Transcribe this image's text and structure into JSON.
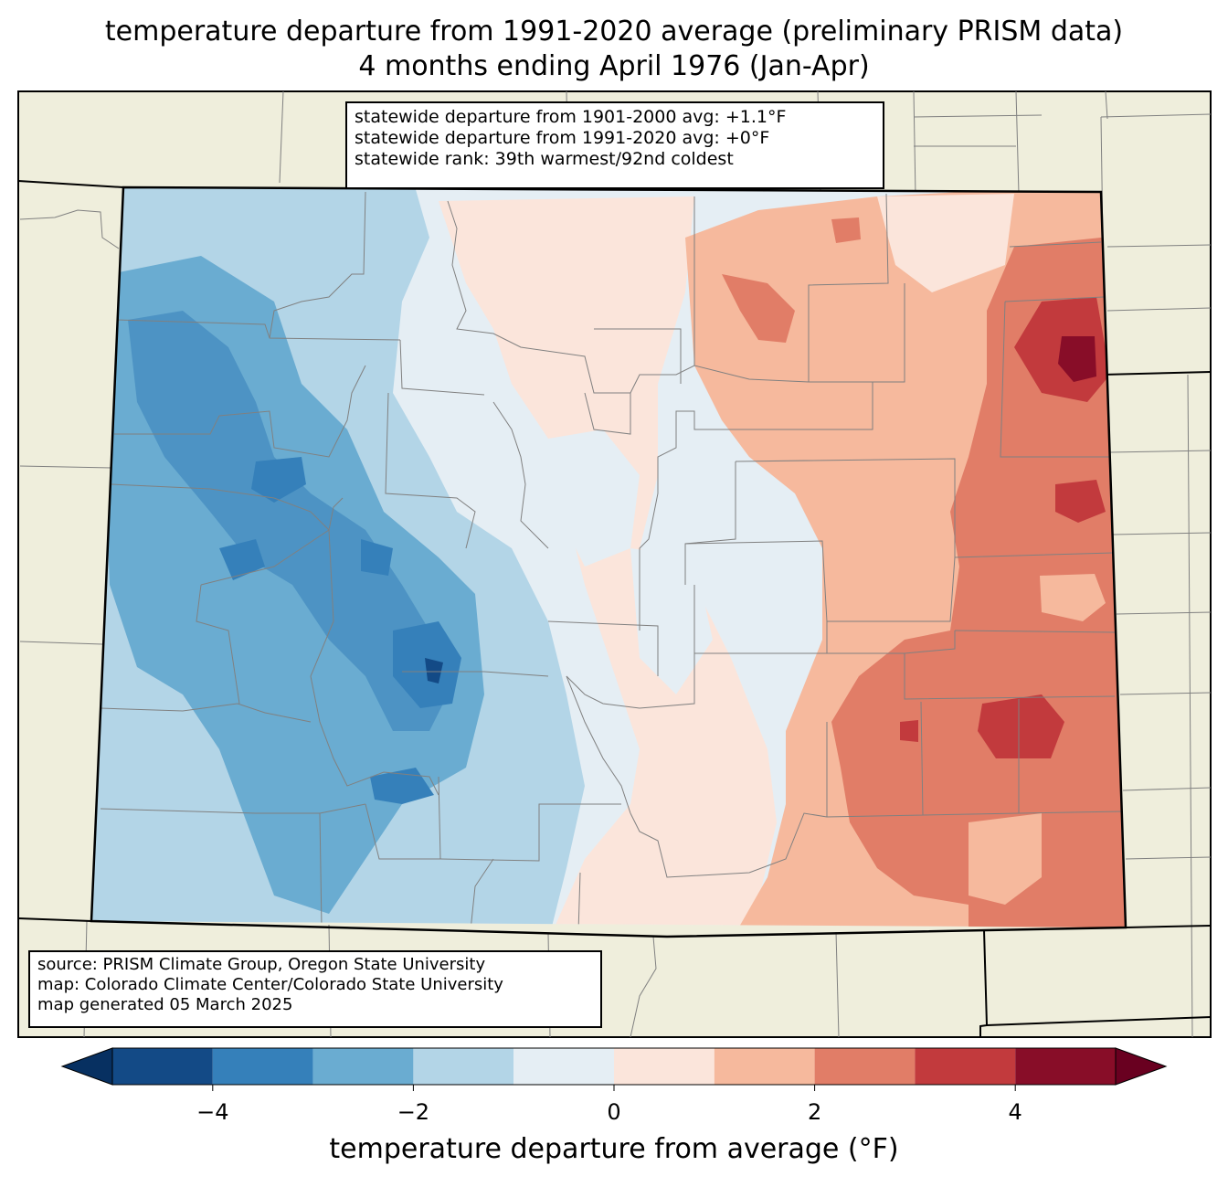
{
  "title": {
    "line1": "temperature departure from 1991-2020 average (preliminary PRISM data)",
    "line2": "4 months ending April 1976 (Jan-Apr)"
  },
  "stats": {
    "line1": "statewide departure from 1901-2000 avg: +1.1°F",
    "line2": "statewide departure from 1991-2020 avg: +0°F",
    "line3": "statewide rank: 39th warmest/92nd coldest"
  },
  "source": {
    "line1": "source: PRISM Climate Group, Oregon State University",
    "line2": "map: Colorado Climate Center/Colorado State University",
    "line3": "map generated 05 March 2025"
  },
  "colorbar": {
    "label": "temperature departure from average (°F)",
    "ticks": [
      "−4",
      "−2",
      "0",
      "2",
      "4"
    ],
    "tick_values": [
      -4,
      -2,
      0,
      2,
      4
    ],
    "range": [
      -5,
      5
    ],
    "bins": [
      {
        "from": -5,
        "to": -4,
        "color": "#134a86"
      },
      {
        "from": -4,
        "to": -3,
        "color": "#3580ba"
      },
      {
        "from": -3,
        "to": -2,
        "color": "#6aacd1"
      },
      {
        "from": -2,
        "to": -1,
        "color": "#b3d5e7"
      },
      {
        "from": -1,
        "to": 0,
        "color": "#e5eef4"
      },
      {
        "from": 0,
        "to": 1,
        "color": "#fbe5db"
      },
      {
        "from": 1,
        "to": 2,
        "color": "#f6b99d"
      },
      {
        "from": 2,
        "to": 3,
        "color": "#e17d67"
      },
      {
        "from": 3,
        "to": 4,
        "color": "#c23a3d"
      },
      {
        "from": 4,
        "to": 5,
        "color": "#880d28"
      }
    ],
    "under_color": "#073061",
    "over_color": "#690020"
  },
  "colors": {
    "land": "#efeedc",
    "state_border": "#000000",
    "county_line": "#808080"
  }
}
